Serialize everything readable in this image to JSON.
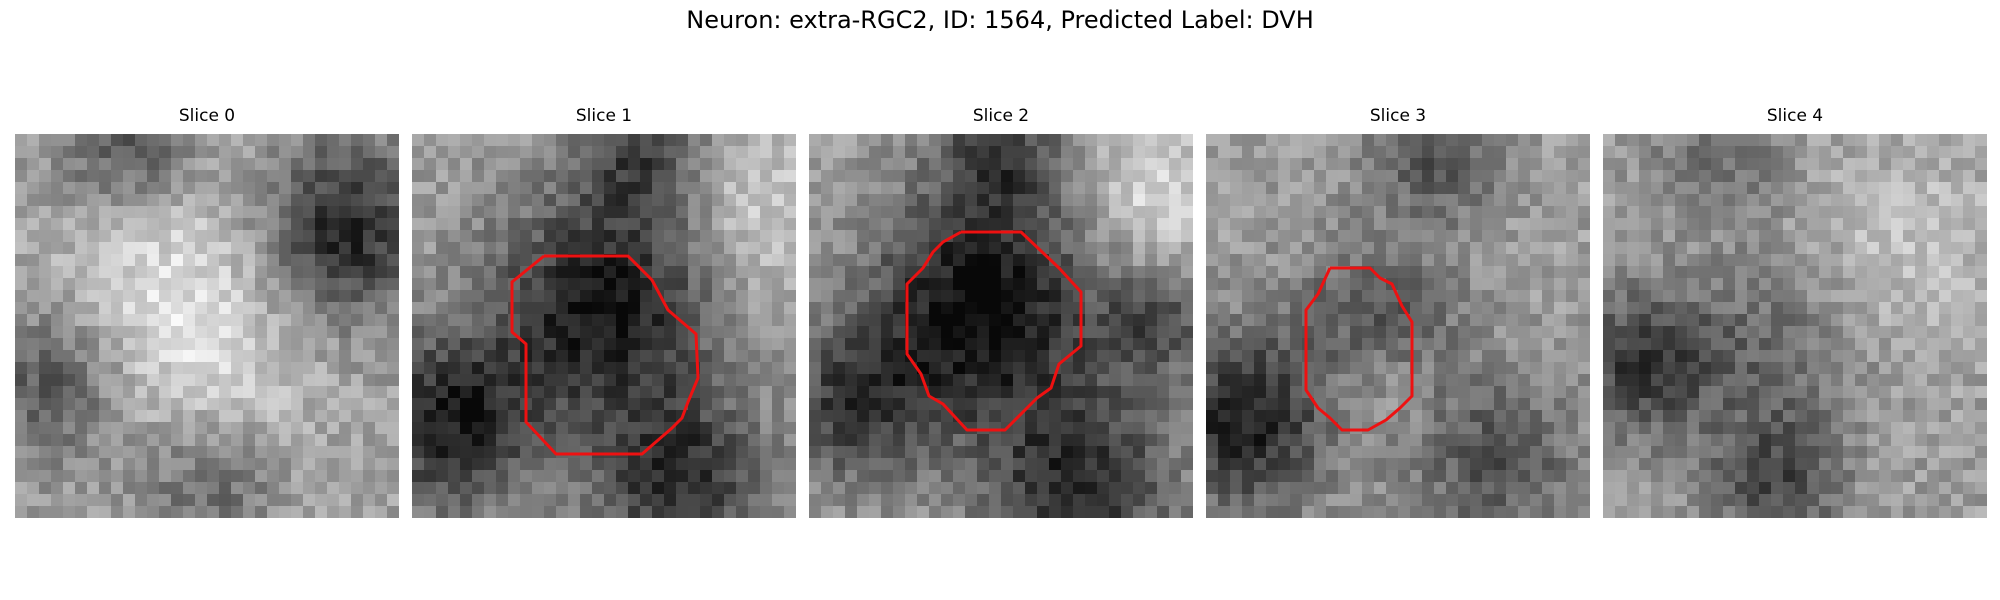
{
  "figure": {
    "title": "Neuron: extra-RGC2, ID: 1564, Predicted Label: DVH",
    "contour_color": "#ee1111",
    "colormap": "gray"
  },
  "panels": [
    {
      "label": "Slice 0",
      "has_contour": false
    },
    {
      "label": "Slice 1",
      "has_contour": true
    },
    {
      "label": "Slice 2",
      "has_contour": true
    },
    {
      "label": "Slice 3",
      "has_contour": true
    },
    {
      "label": "Slice 4",
      "has_contour": false
    }
  ]
}
